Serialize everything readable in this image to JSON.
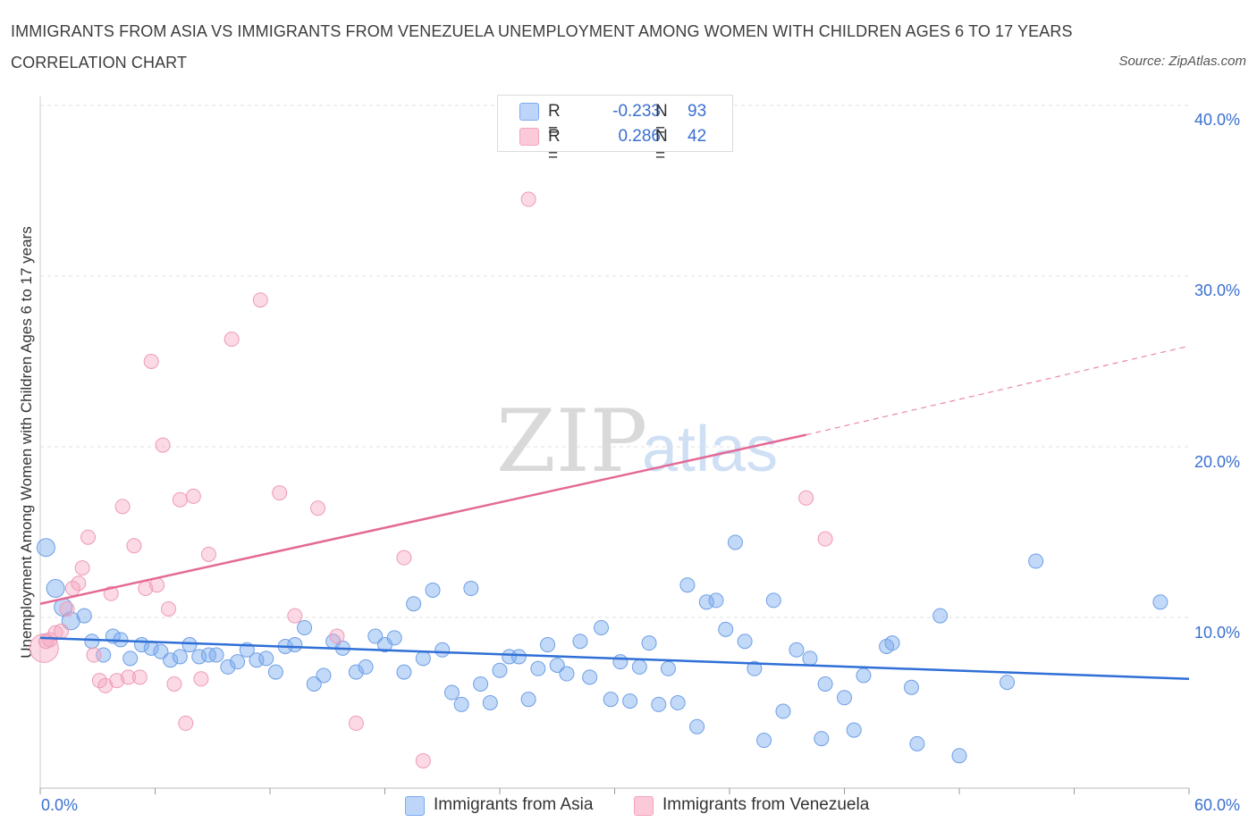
{
  "title": "IMMIGRANTS FROM ASIA VS IMMIGRANTS FROM VENEZUELA UNEMPLOYMENT AMONG WOMEN WITH CHILDREN AGES 6 TO 17 YEARS CORRELATION CHART",
  "source": "Source: ZipAtlas.com",
  "watermark": {
    "zip": "ZIP",
    "atlas": "atlas"
  },
  "colors": {
    "asia": "#7aaaf0",
    "asia_line": "#2f6fd6",
    "venezuela": "#f4a3bd",
    "venezuela_line": "#e46a96",
    "tick": "#3a6fd0"
  },
  "legend": {
    "asia": {
      "r_label": "R =",
      "r_value": "-0.233",
      "n_label": "N =",
      "n_value": "93"
    },
    "venezuela": {
      "r_label": "R =",
      "r_value": "0.286",
      "n_label": "N =",
      "n_value": "42"
    }
  },
  "chart_data": {
    "type": "scatter",
    "title": "IMMIGRANTS FROM ASIA VS IMMIGRANTS FROM VENEZUELA UNEMPLOYMENT AMONG WOMEN WITH CHILDREN AGES 6 TO 17 YEARS CORRELATION CHART",
    "xlabel": "",
    "ylabel": "Unemployment Among Women with Children Ages 6 to 17 years",
    "xlim": [
      0,
      60
    ],
    "ylim": [
      0,
      40
    ],
    "x_tick_labels": [
      "0.0%",
      "60.0%"
    ],
    "y_ticks": [
      10,
      20,
      30,
      40
    ],
    "y_tick_labels": [
      "10.0%",
      "20.0%",
      "30.0%",
      "40.0%"
    ],
    "grid": true,
    "legend_position": "top-center",
    "series": [
      {
        "name": "Immigrants from Asia",
        "trend": {
          "x": [
            0,
            60
          ],
          "y": [
            8.8,
            6.4
          ]
        },
        "points": [
          [
            0.3,
            14.1
          ],
          [
            0.8,
            11.7
          ],
          [
            1.2,
            10.6
          ],
          [
            1.6,
            9.8
          ],
          [
            2.3,
            10.1
          ],
          [
            2.7,
            8.6
          ],
          [
            3.3,
            7.8
          ],
          [
            3.8,
            8.9
          ],
          [
            4.2,
            8.7
          ],
          [
            4.7,
            7.6
          ],
          [
            5.3,
            8.4
          ],
          [
            5.8,
            8.2
          ],
          [
            6.3,
            8.0
          ],
          [
            6.8,
            7.5
          ],
          [
            7.3,
            7.7
          ],
          [
            7.8,
            8.4
          ],
          [
            8.3,
            7.7
          ],
          [
            8.8,
            7.8
          ],
          [
            9.2,
            7.8
          ],
          [
            9.8,
            7.1
          ],
          [
            10.3,
            7.4
          ],
          [
            10.8,
            8.1
          ],
          [
            11.3,
            7.5
          ],
          [
            11.8,
            7.6
          ],
          [
            12.3,
            6.8
          ],
          [
            12.8,
            8.3
          ],
          [
            13.3,
            8.4
          ],
          [
            13.8,
            9.4
          ],
          [
            14.3,
            6.1
          ],
          [
            14.8,
            6.6
          ],
          [
            15.3,
            8.6
          ],
          [
            15.8,
            8.2
          ],
          [
            16.5,
            6.8
          ],
          [
            17.0,
            7.1
          ],
          [
            17.5,
            8.9
          ],
          [
            18.0,
            8.4
          ],
          [
            18.5,
            8.8
          ],
          [
            19.0,
            6.8
          ],
          [
            19.5,
            10.8
          ],
          [
            20.0,
            7.6
          ],
          [
            20.5,
            11.6
          ],
          [
            21.0,
            8.1
          ],
          [
            21.5,
            5.6
          ],
          [
            22.0,
            4.9
          ],
          [
            22.5,
            11.7
          ],
          [
            23.0,
            6.1
          ],
          [
            23.5,
            5.0
          ],
          [
            24.0,
            6.9
          ],
          [
            24.5,
            7.7
          ],
          [
            25.0,
            7.7
          ],
          [
            25.5,
            5.2
          ],
          [
            26.0,
            7.0
          ],
          [
            26.5,
            8.4
          ],
          [
            27.0,
            7.2
          ],
          [
            27.5,
            6.7
          ],
          [
            28.2,
            8.6
          ],
          [
            28.7,
            6.5
          ],
          [
            29.3,
            9.4
          ],
          [
            29.8,
            5.2
          ],
          [
            30.3,
            7.4
          ],
          [
            30.8,
            5.1
          ],
          [
            31.3,
            7.1
          ],
          [
            31.8,
            8.5
          ],
          [
            32.3,
            4.9
          ],
          [
            32.8,
            7.0
          ],
          [
            33.3,
            5.0
          ],
          [
            33.8,
            11.9
          ],
          [
            34.3,
            3.6
          ],
          [
            34.8,
            10.9
          ],
          [
            35.3,
            11.0
          ],
          [
            35.8,
            9.3
          ],
          [
            36.3,
            14.4
          ],
          [
            36.8,
            8.6
          ],
          [
            37.3,
            7.0
          ],
          [
            37.8,
            2.8
          ],
          [
            38.3,
            11.0
          ],
          [
            38.8,
            4.5
          ],
          [
            39.5,
            8.1
          ],
          [
            40.2,
            7.6
          ],
          [
            40.8,
            2.9
          ],
          [
            41.0,
            6.1
          ],
          [
            42.0,
            5.3
          ],
          [
            42.5,
            3.4
          ],
          [
            43.0,
            6.6
          ],
          [
            44.2,
            8.3
          ],
          [
            44.5,
            8.5
          ],
          [
            45.5,
            5.9
          ],
          [
            45.8,
            2.6
          ],
          [
            47.0,
            10.1
          ],
          [
            48.0,
            1.9
          ],
          [
            50.5,
            6.2
          ],
          [
            52.0,
            13.3
          ],
          [
            58.5,
            10.9
          ]
        ]
      },
      {
        "name": "Immigrants from Venezuela",
        "trend": {
          "x": [
            0,
            40
          ],
          "y": [
            10.8,
            20.7
          ]
        },
        "trend_extension": {
          "x": [
            40,
            60
          ],
          "y": [
            20.7,
            25.9
          ]
        },
        "points": [
          [
            0.2,
            8.2
          ],
          [
            0.5,
            8.7
          ],
          [
            0.8,
            9.1
          ],
          [
            1.1,
            9.2
          ],
          [
            1.4,
            10.5
          ],
          [
            1.7,
            11.7
          ],
          [
            2.0,
            12.0
          ],
          [
            2.2,
            12.9
          ],
          [
            2.5,
            14.7
          ],
          [
            2.8,
            7.8
          ],
          [
            3.1,
            6.3
          ],
          [
            3.4,
            6.0
          ],
          [
            3.7,
            11.4
          ],
          [
            4.0,
            6.3
          ],
          [
            4.3,
            16.5
          ],
          [
            4.6,
            6.5
          ],
          [
            4.9,
            14.2
          ],
          [
            5.2,
            6.5
          ],
          [
            5.5,
            11.7
          ],
          [
            5.8,
            25.0
          ],
          [
            6.1,
            11.9
          ],
          [
            6.4,
            20.1
          ],
          [
            6.7,
            10.5
          ],
          [
            7.0,
            6.1
          ],
          [
            7.3,
            16.9
          ],
          [
            7.6,
            3.8
          ],
          [
            8.0,
            17.1
          ],
          [
            8.4,
            6.4
          ],
          [
            8.8,
            13.7
          ],
          [
            10.0,
            26.3
          ],
          [
            11.5,
            28.6
          ],
          [
            12.5,
            17.3
          ],
          [
            13.3,
            10.1
          ],
          [
            14.5,
            16.4
          ],
          [
            15.5,
            8.9
          ],
          [
            16.5,
            3.8
          ],
          [
            19.0,
            13.5
          ],
          [
            20.0,
            1.6
          ],
          [
            25.5,
            34.5
          ],
          [
            40.0,
            17.0
          ],
          [
            41.0,
            14.6
          ],
          [
            0.3,
            8.6
          ]
        ]
      }
    ]
  },
  "bottom_legend": {
    "asia": "Immigrants from Asia",
    "venezuela": "Immigrants from Venezuela"
  }
}
